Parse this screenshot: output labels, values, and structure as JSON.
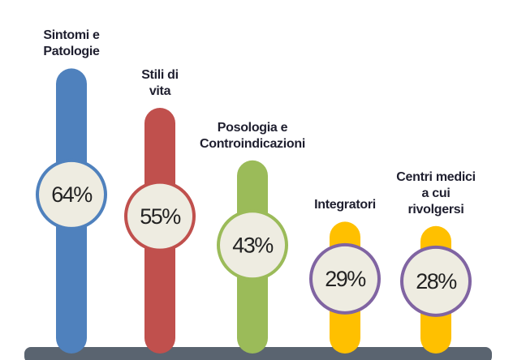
{
  "chart_data": {
    "type": "bar",
    "categories": [
      "Sintomi e\nPatologie",
      "Stili di\nvita",
      "Posologia e\nControindicazioni",
      "Integratori",
      "Centri medici\na cui\nrivolgersi"
    ],
    "values": [
      64,
      55,
      43,
      29,
      28
    ],
    "value_labels": [
      "64%",
      "55%",
      "43%",
      "29%",
      "28%"
    ],
    "colors": [
      "#4f81bd",
      "#c0504d",
      "#9bbb59",
      "#ffc000",
      "#ffc000"
    ],
    "circle_colors": [
      "#4f81bd",
      "#c0504d",
      "#9bbb59",
      "#8064a2",
      "#8064a2"
    ]
  }
}
